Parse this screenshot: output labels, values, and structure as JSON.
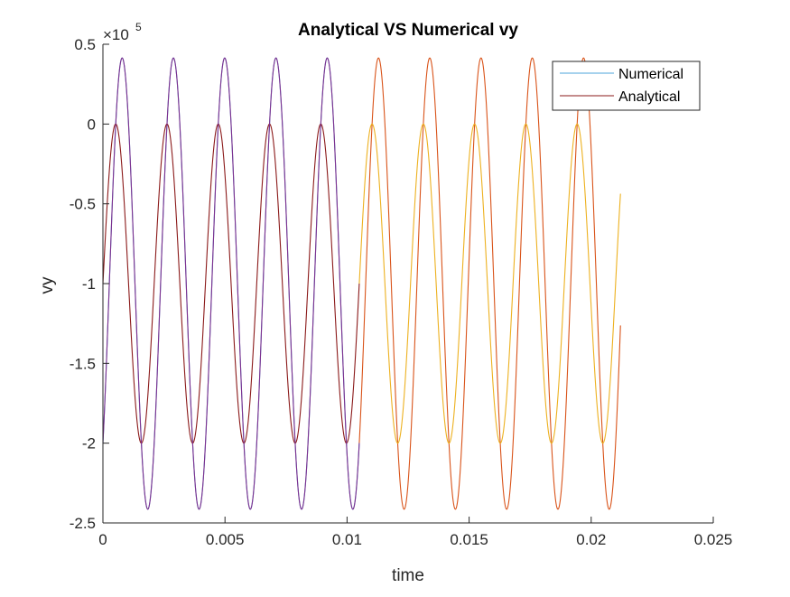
{
  "chart_data": {
    "type": "line",
    "title": "Analytical VS Numerical vy",
    "xlabel": "time",
    "ylabel": "vy",
    "exponent_label": {
      "base": "×10",
      "power": "5"
    },
    "xlim": [
      0,
      0.025
    ],
    "ylim": [
      -250000,
      50000
    ],
    "xticks": [
      0,
      0.005,
      0.01,
      0.015,
      0.02,
      0.025
    ],
    "xtick_labels": [
      "0",
      "0.005",
      "0.01",
      "0.015",
      "0.02",
      "0.025"
    ],
    "yticks": [
      -250000,
      -200000,
      -150000,
      -100000,
      -50000,
      0,
      50000
    ],
    "ytick_labels": [
      "-2.5",
      "-2",
      "-1.5",
      "-1",
      "-0.5",
      "0",
      "0.5"
    ],
    "grid": false,
    "legend": {
      "location": "top-right",
      "entries": [
        "Numerical",
        "Analytical"
      ]
    },
    "series": [
      {
        "name": "Numerical",
        "color": "#4DA6DB",
        "model": {
          "amp": 141400,
          "offset": -100000,
          "phase": -0.785,
          "period": 0.0021,
          "x_start": 0,
          "x_end": 0.0105
        }
      },
      {
        "name": "Analytical",
        "color": "#8B1A1A",
        "model": {
          "amp": 100000,
          "offset": -100000,
          "phase": 0,
          "period": 0.0021,
          "x_start": 0,
          "x_end": 0.0105
        }
      },
      {
        "color": "#D95319",
        "model": {
          "amp": 141400,
          "offset": -100000,
          "phase": -0.785,
          "period": 0.0021,
          "x_start": 0.0105,
          "x_end": 0.0212
        }
      },
      {
        "color": "#EDB120",
        "model": {
          "amp": 100000,
          "offset": -100000,
          "phase": 0,
          "period": 0.0021,
          "x_start": 0.0105,
          "x_end": 0.0212
        }
      },
      {
        "color": "#7E2F8E",
        "model": {
          "amp": 141400,
          "offset": -100000,
          "phase": -0.785,
          "period": 0.0021,
          "x_start": 0,
          "x_end": 0.0105
        }
      }
    ]
  }
}
